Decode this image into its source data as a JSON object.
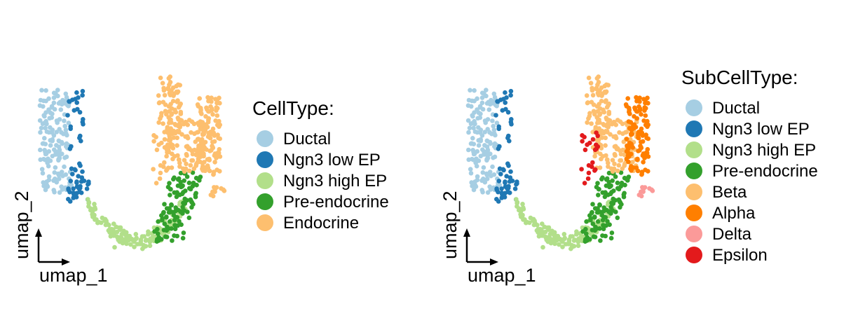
{
  "chart_data": [
    {
      "type": "scatter",
      "title": "",
      "xlabel": "umap_1",
      "ylabel": "umap_2",
      "legend_title": "CellType:",
      "legend_placement": "right",
      "grid": false,
      "categories": [
        {
          "name": "Ductal",
          "color": "#A6CEE3"
        },
        {
          "name": "Ngn3 low EP",
          "color": "#1F78B4"
        },
        {
          "name": "Ngn3 high EP",
          "color": "#B2DF8A"
        },
        {
          "name": "Pre-endocrine",
          "color": "#33A02C"
        },
        {
          "name": "Endocrine",
          "color": "#FDBF6F"
        }
      ]
    },
    {
      "type": "scatter",
      "title": "",
      "xlabel": "umap_1",
      "ylabel": "umap_2",
      "legend_title": "SubCellType:",
      "legend_placement": "right",
      "grid": false,
      "categories": [
        {
          "name": "Ductal",
          "color": "#A6CEE3"
        },
        {
          "name": "Ngn3 low EP",
          "color": "#1F78B4"
        },
        {
          "name": "Ngn3 high EP",
          "color": "#B2DF8A"
        },
        {
          "name": "Pre-endocrine",
          "color": "#33A02C"
        },
        {
          "name": "Beta",
          "color": "#FDBF6F"
        },
        {
          "name": "Alpha",
          "color": "#FF7F00"
        },
        {
          "name": "Delta",
          "color": "#FB9A99"
        },
        {
          "name": "Epsilon",
          "color": "#E31A1C"
        }
      ]
    }
  ]
}
